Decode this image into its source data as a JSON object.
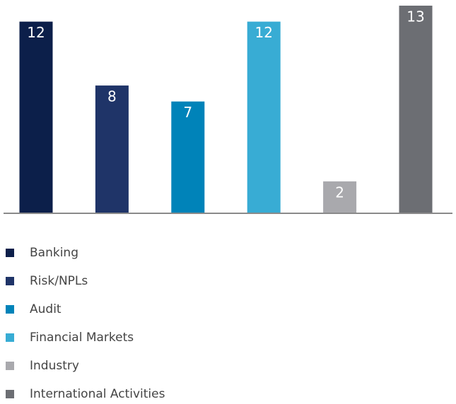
{
  "chart_data": {
    "type": "bar",
    "categories": [
      "Banking",
      "Risk/NPLs",
      "Audit",
      "Financial Markets",
      "Industry",
      "International Activities"
    ],
    "values": [
      12,
      8,
      7,
      12,
      2,
      13
    ],
    "colors": [
      "#0c1f4a",
      "#1f3468",
      "#0083b9",
      "#38acd4",
      "#a9a9ad",
      "#6c6e73"
    ],
    "ylim": [
      0,
      13
    ]
  }
}
